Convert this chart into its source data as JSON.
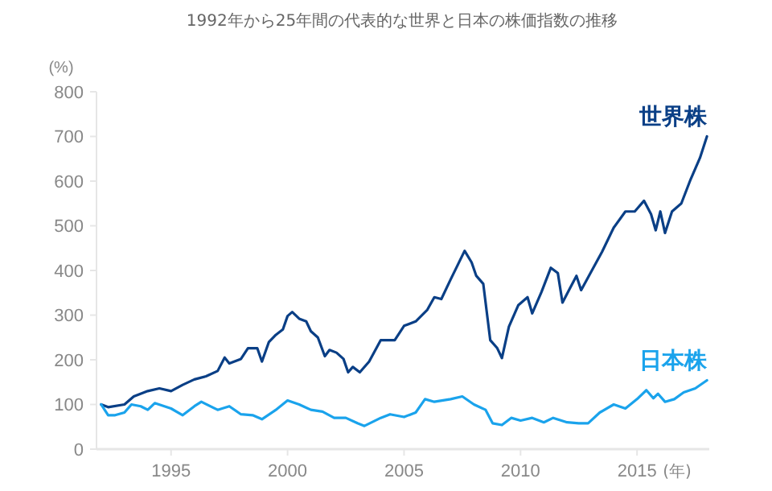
{
  "chart_data": {
    "type": "line",
    "title": "1992年から25年間の代表的な世界と日本の株価指数の推移",
    "ylabel": "(%)",
    "xlabel": "(年)",
    "xlim": [
      1991.8,
      2018.1
    ],
    "xticks": [
      1995,
      2000,
      2005,
      2010,
      2015
    ],
    "ylim": [
      0,
      800
    ],
    "yticks": [
      0,
      100,
      200,
      300,
      400,
      500,
      600,
      700,
      800
    ],
    "grid": false,
    "marker": "none",
    "line_style": "solid",
    "series": [
      {
        "name": "世界株",
        "color": "#0a3f86",
        "x": [
          1992,
          1992.3,
          1993,
          1993.4,
          1994,
          1994.5,
          1995,
          1995.5,
          1996,
          1996.5,
          1997,
          1997.3,
          1997.5,
          1998,
          1998.3,
          1998.7,
          1998.9,
          1999.2,
          1999.5,
          1999.8,
          2000,
          2000.2,
          2000.5,
          2000.8,
          2001,
          2001.3,
          2001.6,
          2001.8,
          2002.1,
          2002.4,
          2002.6,
          2002.8,
          2003.1,
          2003.5,
          2004,
          2004.6,
          2005,
          2005.5,
          2006,
          2006.3,
          2006.6,
          2007,
          2007.3,
          2007.6,
          2007.9,
          2008.1,
          2008.4,
          2008.7,
          2009,
          2009.2,
          2009.5,
          2009.9,
          2010.3,
          2010.5,
          2010.9,
          2011.3,
          2011.6,
          2011.8,
          2012.1,
          2012.4,
          2012.6,
          2013,
          2013.5,
          2014,
          2014.5,
          2014.9,
          2015.3,
          2015.6,
          2015.8,
          2016,
          2016.2,
          2016.5,
          2016.9,
          2017.3,
          2017.7,
          2018
        ],
        "values": [
          100,
          94,
          100,
          118,
          130,
          136,
          130,
          144,
          156,
          163,
          175,
          205,
          192,
          202,
          226,
          226,
          196,
          240,
          256,
          268,
          298,
          307,
          292,
          286,
          264,
          250,
          208,
          222,
          216,
          202,
          172,
          184,
          172,
          196,
          244,
          244,
          276,
          286,
          312,
          340,
          336,
          380,
          412,
          444,
          418,
          388,
          370,
          244,
          226,
          204,
          274,
          322,
          340,
          304,
          352,
          406,
          394,
          328,
          358,
          388,
          356,
          394,
          442,
          496,
          532,
          532,
          556,
          526,
          490,
          532,
          484,
          532,
          550,
          604,
          652,
          700
        ]
      },
      {
        "name": "日本株",
        "color": "#1aa3ec",
        "x": [
          1992,
          1992.3,
          1992.6,
          1993,
          1993.3,
          1993.7,
          1994,
          1994.3,
          1995,
          1995.5,
          1996,
          1996.3,
          1997,
          1997.5,
          1998,
          1998.5,
          1998.9,
          1999.5,
          2000,
          2000.5,
          2001,
          2001.5,
          2002,
          2002.5,
          2003,
          2003.3,
          2004,
          2004.4,
          2005,
          2005.5,
          2005.9,
          2006.3,
          2007,
          2007.5,
          2008,
          2008.5,
          2008.8,
          2009.2,
          2009.6,
          2010,
          2010.5,
          2011,
          2011.4,
          2012,
          2012.5,
          2012.9,
          2013.4,
          2014,
          2014.5,
          2015,
          2015.4,
          2015.7,
          2015.9,
          2016.2,
          2016.6,
          2017,
          2017.5,
          2018
        ],
        "values": [
          100,
          76,
          76,
          82,
          100,
          96,
          88,
          103,
          91,
          76,
          96,
          106,
          88,
          96,
          78,
          76,
          67,
          88,
          109,
          100,
          88,
          84,
          70,
          70,
          58,
          52,
          70,
          78,
          72,
          82,
          112,
          106,
          112,
          118,
          100,
          88,
          58,
          54,
          70,
          64,
          70,
          60,
          70,
          60,
          58,
          58,
          82,
          100,
          91,
          112,
          132,
          114,
          124,
          106,
          112,
          127,
          136,
          154
        ]
      }
    ]
  }
}
